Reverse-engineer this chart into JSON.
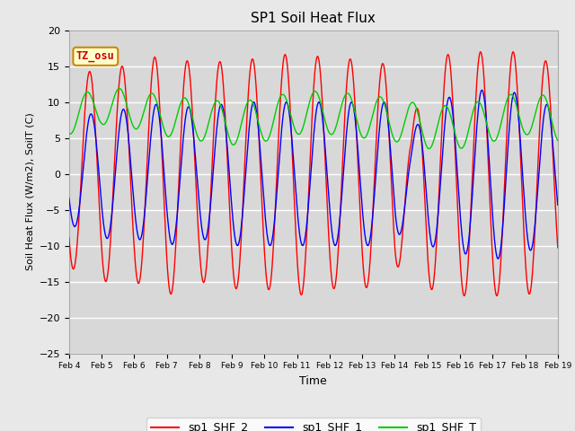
{
  "title": "SP1 Soil Heat Flux",
  "xlabel": "Time",
  "ylabel": "Soil Heat Flux (W/m2), SoilT (C)",
  "ylim": [
    -25,
    20
  ],
  "x_tick_labels": [
    "Feb 4",
    "Feb 5",
    "Feb 6",
    "Feb 7",
    "Feb 8",
    "Feb 9",
    "Feb 10",
    "Feb 11",
    "Feb 12",
    "Feb 13",
    "Feb 14",
    "Feb 15",
    "Feb 16",
    "Feb 17",
    "Feb 18",
    "Feb 19"
  ],
  "legend_labels": [
    "sp1_SHF_2",
    "sp1_SHF_1",
    "sp1_SHF_T"
  ],
  "legend_colors": [
    "#ff0000",
    "#0000ff",
    "#00cc00"
  ],
  "annotation_text": "TZ_osu",
  "annotation_color": "#cc0000",
  "annotation_box_color": "#ffffcc",
  "annotation_box_edge": "#cc8800",
  "fig_bg_color": "#e8e8e8",
  "plot_bg_color": "#d8d8d8",
  "grid_color": "#ffffff"
}
